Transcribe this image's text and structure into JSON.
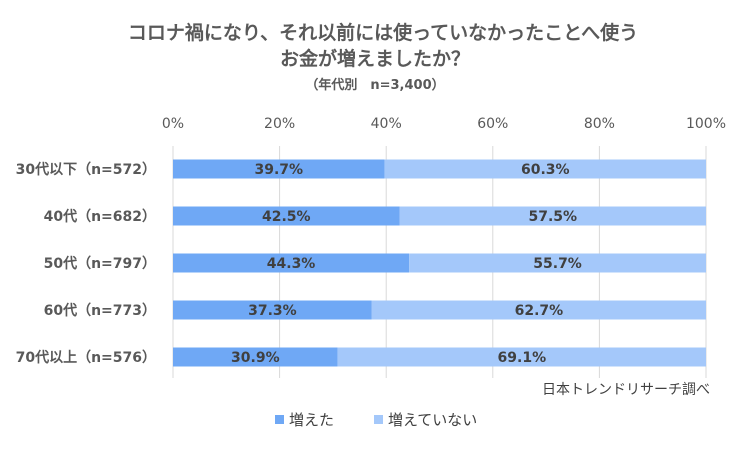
{
  "chart_data": {
    "type": "bar",
    "orientation": "horizontal",
    "stacked": true,
    "percent_stacked": true,
    "title": "コロナ禍になり、それ以前には使っていなかったことへ使うお金が増えましたか？",
    "title_lines": [
      "コロナ禍になり、それ以前には使っていなかったことへ使う",
      "お金が増えましたか？"
    ],
    "subtitle": "（年代別　n=3,400）",
    "categories": [
      "30代以下（n=572）",
      "40代（n=682）",
      "50代（n=797）",
      "60代（n=773）",
      "70代以上（n=576）"
    ],
    "series": [
      {
        "name": "増えた",
        "color": "#6FA8F5",
        "values": [
          39.7,
          42.5,
          44.3,
          37.3,
          30.9
        ]
      },
      {
        "name": "増えていない",
        "color": "#A4C8FA",
        "values": [
          60.3,
          57.5,
          55.7,
          62.7,
          69.1
        ]
      }
    ],
    "value_labels": [
      [
        "39.7%",
        "42.5%",
        "44.3%",
        "37.3%",
        "30.9%"
      ],
      [
        "60.3%",
        "57.5%",
        "55.7%",
        "62.7%",
        "69.1%"
      ]
    ],
    "x_ticks": [
      "0%",
      "20%",
      "40%",
      "60%",
      "80%",
      "100%"
    ],
    "xlim": [
      0,
      100
    ],
    "x_axis_position": "top",
    "grid": true,
    "legend_position": "bottom",
    "source_note": "日本トレンドリサーチ調べ",
    "colors": {
      "grid": "#D9D9D9",
      "text": "#595959"
    }
  }
}
